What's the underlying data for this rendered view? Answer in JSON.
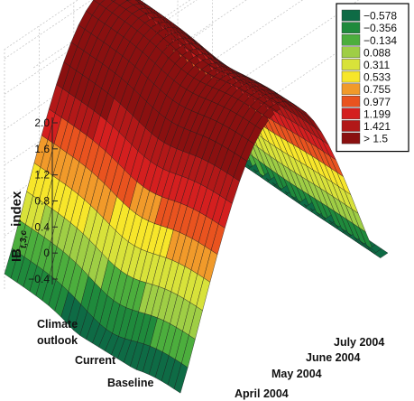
{
  "chart_data": {
    "type": "surface-3d",
    "ylabel_main": "IB",
    "ylabel_sub": "t,3,c",
    "ylabel_rest": " index",
    "z_ticks": [
      "2.0",
      "1.6",
      "1.2",
      "0.8",
      "0.4",
      "0",
      "−0.4"
    ],
    "z_tick_values": [
      2.0,
      1.6,
      1.2,
      0.8,
      0.4,
      0.0,
      -0.4
    ],
    "zlim": [
      -0.6,
      2.0
    ],
    "scenario_axis": {
      "labels": [
        {
          "line1": "Climate",
          "line2": "outlook"
        },
        {
          "line1": "Current",
          "line2": ""
        },
        {
          "line1": "Baseline",
          "line2": ""
        }
      ]
    },
    "month_axis": {
      "labels": [
        "April 2004",
        "May 2004",
        "June 2004",
        "July 2004"
      ]
    },
    "legend": {
      "entries": [
        {
          "label": "−0.578",
          "color": "#0e6b45"
        },
        {
          "label": "−0.356",
          "color": "#1f8a3c"
        },
        {
          "label": "−0.134",
          "color": "#4cae3d"
        },
        {
          "label": "0.088",
          "color": "#9fce45"
        },
        {
          "label": "0.311",
          "color": "#d8e23a"
        },
        {
          "label": "0.533",
          "color": "#f7e62a"
        },
        {
          "label": "0.755",
          "color": "#f19a2a"
        },
        {
          "label": "0.977",
          "color": "#e9531f"
        },
        {
          "label": "1.199",
          "color": "#d41f1f"
        },
        {
          "label": "1.421",
          "color": "#b21818"
        },
        {
          "label": "> 1.5",
          "color": "#8a1010"
        }
      ]
    }
  }
}
